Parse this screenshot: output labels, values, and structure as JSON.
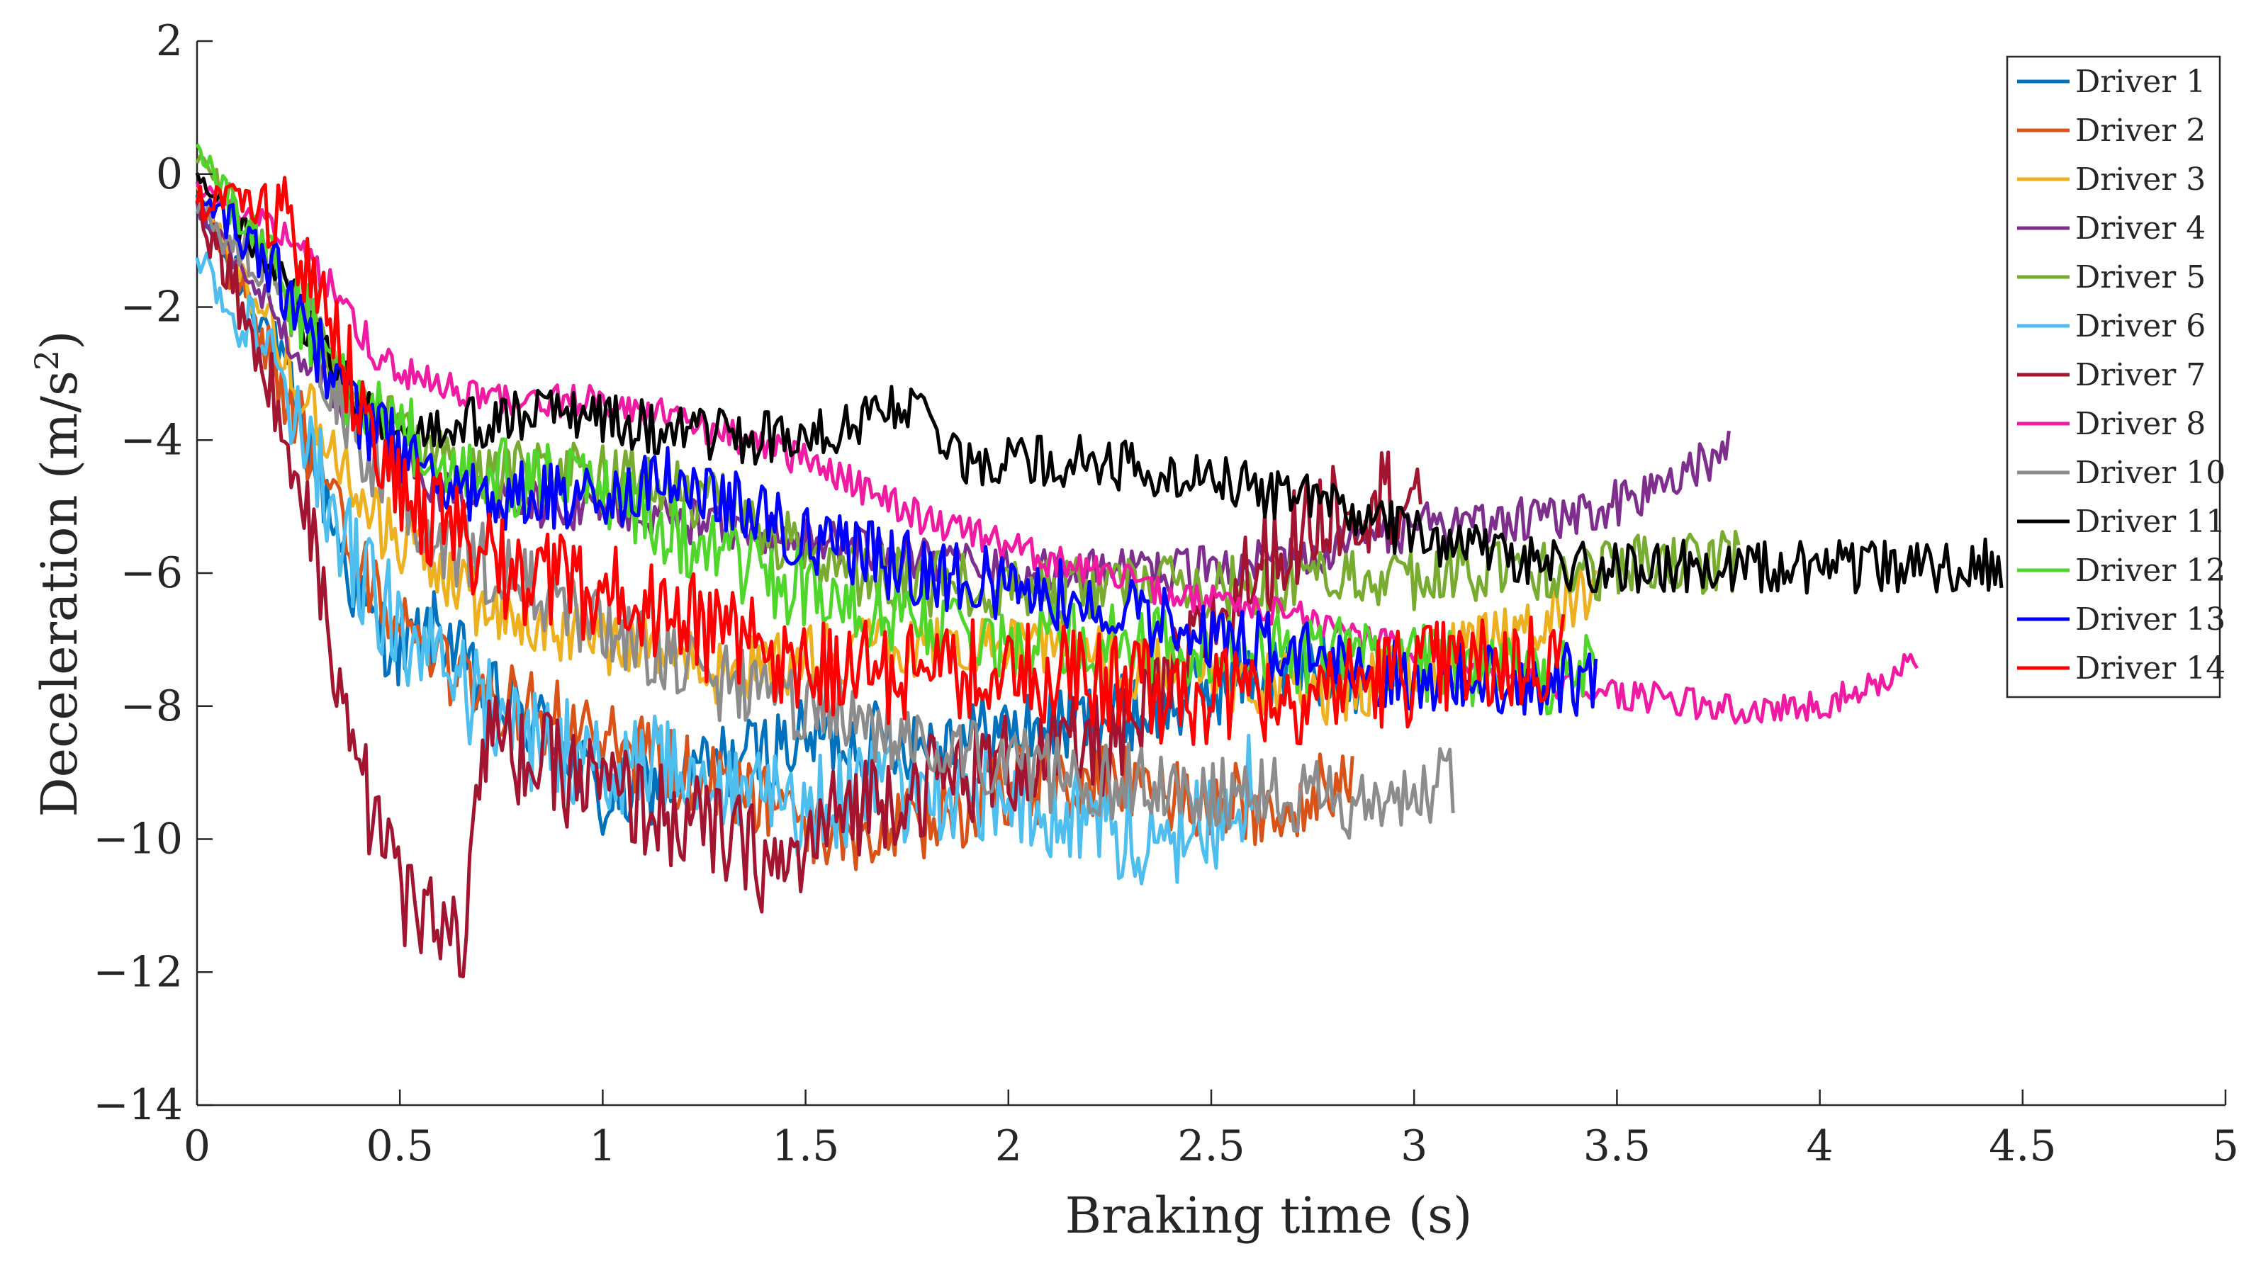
{
  "chart_data": {
    "type": "line",
    "title": "",
    "xlabel": "Braking time (s)",
    "ylabel": "Deceleration (m/s",
    "ylabel_sup": "2",
    "ylabel_tail": ")",
    "xlim": [
      0,
      5
    ],
    "ylim": [
      -14,
      2
    ],
    "grid": false,
    "legend_position": "top-right",
    "x_ticks": [
      0,
      0.5,
      1,
      1.5,
      2,
      2.5,
      3,
      3.5,
      4,
      4.5,
      5
    ],
    "x_tick_labels": [
      "0",
      "0.5",
      "1",
      "1.5",
      "2",
      "2.5",
      "3",
      "3.5",
      "4",
      "4.5",
      "5"
    ],
    "y_ticks": [
      2,
      0,
      -2,
      -4,
      -6,
      -8,
      -10,
      -12,
      -14
    ],
    "y_tick_labels": [
      "2",
      "0",
      "−2",
      "−4",
      "−6",
      "−8",
      "−10",
      "−12",
      "−14"
    ],
    "series": [
      {
        "name": "Driver 1",
        "color": "#0072BD",
        "noise": 0.6,
        "points": [
          [
            0,
            -0.5
          ],
          [
            0.15,
            -2
          ],
          [
            0.3,
            -4.5
          ],
          [
            0.4,
            -6.5
          ],
          [
            0.5,
            -7.2
          ],
          [
            0.6,
            -6.8
          ],
          [
            0.7,
            -7.8
          ],
          [
            0.9,
            -8.5
          ],
          [
            1.0,
            -9.5
          ],
          [
            1.2,
            -9
          ],
          [
            1.5,
            -8.5
          ],
          [
            1.8,
            -8.5
          ],
          [
            2.1,
            -8.3
          ],
          [
            2.4,
            -8
          ],
          [
            2.6,
            -7.5
          ],
          [
            2.9,
            -7.5
          ]
        ]
      },
      {
        "name": "Driver 2",
        "color": "#D95319",
        "noise": 0.6,
        "points": [
          [
            0,
            -0.3
          ],
          [
            0.2,
            -3
          ],
          [
            0.4,
            -6
          ],
          [
            0.6,
            -7.5
          ],
          [
            0.8,
            -8
          ],
          [
            1.0,
            -8.5
          ],
          [
            1.2,
            -9
          ],
          [
            1.4,
            -9.5
          ],
          [
            1.6,
            -10
          ],
          [
            1.8,
            -9.8
          ],
          [
            2.0,
            -9.2
          ],
          [
            2.3,
            -9.2
          ],
          [
            2.6,
            -9.5
          ],
          [
            2.85,
            -9.2
          ]
        ]
      },
      {
        "name": "Driver 3",
        "color": "#EDB120",
        "noise": 0.5,
        "points": [
          [
            0,
            -0.2
          ],
          [
            0.2,
            -2.5
          ],
          [
            0.4,
            -5
          ],
          [
            0.7,
            -6.5
          ],
          [
            1.0,
            -7
          ],
          [
            1.3,
            -7.5
          ],
          [
            1.6,
            -7.2
          ],
          [
            2.0,
            -7
          ],
          [
            2.4,
            -7.5
          ],
          [
            2.8,
            -7.8
          ],
          [
            3.0,
            -7.5
          ],
          [
            3.2,
            -7
          ],
          [
            3.45,
            -6.2
          ]
        ]
      },
      {
        "name": "Driver 4",
        "color": "#7E2F8E",
        "noise": 0.35,
        "points": [
          [
            0,
            -0.5
          ],
          [
            0.3,
            -3
          ],
          [
            0.6,
            -4.8
          ],
          [
            0.9,
            -5
          ],
          [
            1.2,
            -5.2
          ],
          [
            1.5,
            -5.5
          ],
          [
            1.8,
            -5.8
          ],
          [
            2.1,
            -6
          ],
          [
            2.4,
            -6
          ],
          [
            2.7,
            -5.8
          ],
          [
            3.0,
            -5.3
          ],
          [
            3.3,
            -5.2
          ],
          [
            3.6,
            -4.8
          ],
          [
            3.78,
            -4.1
          ]
        ]
      },
      {
        "name": "Driver 5",
        "color": "#77AC30",
        "noise": 0.5,
        "points": [
          [
            0,
            0.3
          ],
          [
            0.2,
            -1.5
          ],
          [
            0.4,
            -3.5
          ],
          [
            0.7,
            -4.5
          ],
          [
            1.0,
            -4.5
          ],
          [
            1.3,
            -5
          ],
          [
            1.6,
            -6
          ],
          [
            2.0,
            -6.3
          ],
          [
            2.4,
            -6.2
          ],
          [
            2.8,
            -6.1
          ],
          [
            3.2,
            -6
          ],
          [
            3.6,
            -5.9
          ],
          [
            3.8,
            -5.8
          ]
        ]
      },
      {
        "name": "Driver 6",
        "color": "#4DBEEE",
        "noise": 0.8,
        "points": [
          [
            0,
            -1.2
          ],
          [
            0.2,
            -3
          ],
          [
            0.4,
            -6
          ],
          [
            0.6,
            -7.5
          ],
          [
            0.8,
            -8.5
          ],
          [
            1.0,
            -8.8
          ],
          [
            1.3,
            -9
          ],
          [
            1.5,
            -9.5
          ],
          [
            1.8,
            -9.2
          ],
          [
            2.1,
            -9.5
          ],
          [
            2.4,
            -10.2
          ],
          [
            2.6,
            -9.2
          ]
        ]
      },
      {
        "name": "Driver 7",
        "color": "#A2142F",
        "noise": 0.8,
        "points": [
          [
            0,
            -0.5
          ],
          [
            0.15,
            -2.5
          ],
          [
            0.3,
            -6
          ],
          [
            0.4,
            -9
          ],
          [
            0.5,
            -10.8
          ],
          [
            0.6,
            -11.2
          ],
          [
            0.65,
            -11.8
          ],
          [
            0.7,
            -8.5
          ],
          [
            0.9,
            -9
          ],
          [
            1.1,
            -9.5
          ],
          [
            1.3,
            -10
          ],
          [
            1.45,
            -10.5
          ],
          [
            1.6,
            -9.5
          ],
          [
            1.9,
            -9
          ],
          [
            2.3,
            -8.5
          ],
          [
            2.6,
            -6
          ],
          [
            2.8,
            -5
          ],
          [
            3.02,
            -4.7
          ]
        ]
      },
      {
        "name": "Driver 8",
        "color": "#F01AA3",
        "noise": 0.25,
        "points": [
          [
            0,
            -0.2
          ],
          [
            0.2,
            -0.8
          ],
          [
            0.35,
            -1.8
          ],
          [
            0.45,
            -2.8
          ],
          [
            0.6,
            -3.2
          ],
          [
            0.8,
            -3.4
          ],
          [
            1.0,
            -3.4
          ],
          [
            1.2,
            -3.7
          ],
          [
            1.5,
            -4.3
          ],
          [
            1.8,
            -5.2
          ],
          [
            2.1,
            -5.8
          ],
          [
            2.4,
            -6.3
          ],
          [
            2.7,
            -6.6
          ],
          [
            2.9,
            -7
          ],
          [
            3.1,
            -7.5
          ],
          [
            3.4,
            -7.7
          ],
          [
            3.7,
            -8
          ],
          [
            3.9,
            -8.05
          ],
          [
            4.05,
            -7.9
          ],
          [
            4.24,
            -7.3
          ]
        ]
      },
      {
        "name": "Driver 10",
        "color": "#8C8C8C",
        "noise": 0.6,
        "points": [
          [
            0,
            -0.5
          ],
          [
            0.25,
            -2
          ],
          [
            0.4,
            -4
          ],
          [
            0.6,
            -5.5
          ],
          [
            0.9,
            -6.5
          ],
          [
            1.2,
            -7.5
          ],
          [
            1.5,
            -8
          ],
          [
            1.8,
            -8.5
          ],
          [
            2.1,
            -9
          ],
          [
            2.4,
            -9.2
          ],
          [
            2.7,
            -9.3
          ],
          [
            2.9,
            -9.6
          ],
          [
            3.1,
            -9.1
          ]
        ]
      },
      {
        "name": "Driver 11",
        "color": "#000000",
        "noise": 0.4,
        "points": [
          [
            0,
            0
          ],
          [
            0.2,
            -1.5
          ],
          [
            0.4,
            -3.5
          ],
          [
            0.6,
            -3.8
          ],
          [
            0.9,
            -3.6
          ],
          [
            1.2,
            -3.9
          ],
          [
            1.5,
            -4
          ],
          [
            1.75,
            -3.5
          ],
          [
            1.9,
            -4.3
          ],
          [
            2.2,
            -4.3
          ],
          [
            2.5,
            -4.6
          ],
          [
            2.8,
            -5
          ],
          [
            3.1,
            -5.6
          ],
          [
            3.4,
            -5.9
          ],
          [
            3.7,
            -5.9
          ],
          [
            4.0,
            -5.9
          ],
          [
            4.3,
            -5.9
          ],
          [
            4.45,
            -5.85
          ]
        ]
      },
      {
        "name": "Driver 12",
        "color": "#4FD62B",
        "noise": 0.6,
        "points": [
          [
            0,
            0.3
          ],
          [
            0.2,
            -1.5
          ],
          [
            0.4,
            -3.5
          ],
          [
            0.7,
            -4.5
          ],
          [
            1.0,
            -4.8
          ],
          [
            1.3,
            -5.8
          ],
          [
            1.6,
            -6.5
          ],
          [
            1.9,
            -7
          ],
          [
            2.2,
            -7
          ],
          [
            2.6,
            -7.2
          ],
          [
            3.0,
            -7.3
          ],
          [
            3.3,
            -7.6
          ],
          [
            3.45,
            -7.4
          ]
        ]
      },
      {
        "name": "Driver 13",
        "color": "#0000FF",
        "noise": 0.55,
        "points": [
          [
            0,
            -0.2
          ],
          [
            0.2,
            -1.5
          ],
          [
            0.4,
            -3.8
          ],
          [
            0.7,
            -4.8
          ],
          [
            1.0,
            -5
          ],
          [
            1.2,
            -4.5
          ],
          [
            1.5,
            -5.5
          ],
          [
            1.8,
            -6
          ],
          [
            2.1,
            -6.3
          ],
          [
            2.4,
            -6.8
          ],
          [
            2.7,
            -7.2
          ],
          [
            3.0,
            -7.6
          ],
          [
            3.3,
            -7.6
          ],
          [
            3.45,
            -7.6
          ]
        ]
      },
      {
        "name": "Driver 14",
        "color": "#FF0000",
        "noise": 0.8,
        "points": [
          [
            0,
            -0.4
          ],
          [
            0.2,
            -0.5
          ],
          [
            0.3,
            -1.5
          ],
          [
            0.45,
            -4.5
          ],
          [
            0.7,
            -5.8
          ],
          [
            0.9,
            -6.2
          ],
          [
            1.1,
            -6.5
          ],
          [
            1.3,
            -7
          ],
          [
            1.5,
            -7.5
          ],
          [
            1.8,
            -7.5
          ],
          [
            2.1,
            -7.5
          ],
          [
            2.4,
            -7.8
          ],
          [
            2.7,
            -7.8
          ],
          [
            3.0,
            -7.5
          ],
          [
            3.2,
            -7.4
          ],
          [
            3.37,
            -7.2
          ]
        ]
      }
    ]
  }
}
